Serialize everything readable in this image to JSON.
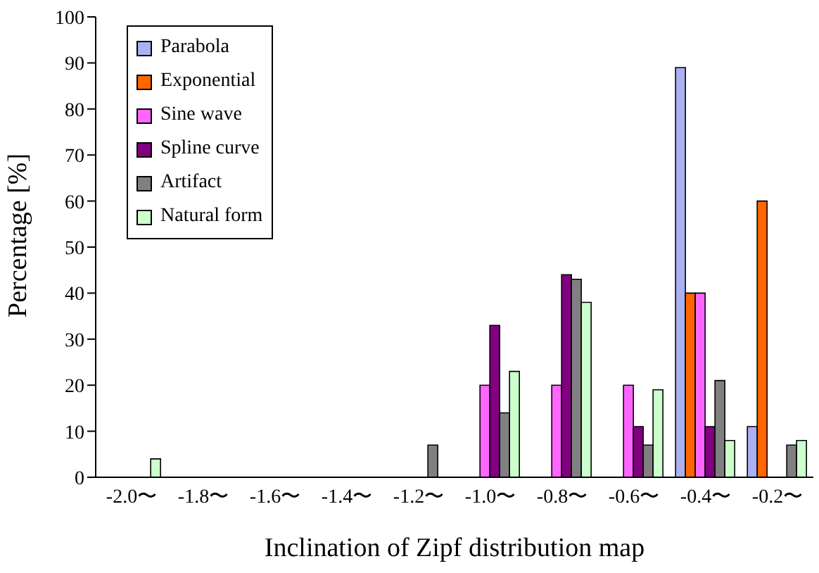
{
  "chart_data": {
    "type": "bar",
    "xlabel": "Inclination of Zipf distribution map",
    "ylabel": "Percentage [%]",
    "categories": [
      "-2.0〜",
      "-1.8〜",
      "-1.6〜",
      "-1.4〜",
      "-1.2〜",
      "-1.0〜",
      "-0.8〜",
      "-0.6〜",
      "-0.4〜",
      "-0.2〜"
    ],
    "series": [
      {
        "name": "Parabola",
        "color": "#aab0f0",
        "values": [
          0,
          0,
          0,
          0,
          0,
          0,
          0,
          0,
          89,
          11
        ]
      },
      {
        "name": "Exponential",
        "color": "#ff6600",
        "values": [
          0,
          0,
          0,
          0,
          0,
          0,
          0,
          0,
          40,
          60
        ]
      },
      {
        "name": "Sine wave",
        "color": "#ff66ff",
        "values": [
          0,
          0,
          0,
          0,
          0,
          20,
          20,
          20,
          40,
          0
        ]
      },
      {
        "name": "Spline curve",
        "color": "#800080",
        "values": [
          0,
          0,
          0,
          0,
          0,
          33,
          44,
          11,
          11,
          0
        ]
      },
      {
        "name": "Artifact",
        "color": "#808080",
        "values": [
          0,
          0,
          0,
          0,
          7,
          14,
          43,
          7,
          21,
          7
        ]
      },
      {
        "name": "Natural form",
        "color": "#ccffcc",
        "values": [
          4,
          0,
          0,
          0,
          0,
          23,
          38,
          19,
          8,
          8
        ]
      }
    ],
    "ylim": [
      0,
      100
    ],
    "yticks": [
      0,
      10,
      20,
      30,
      40,
      50,
      60,
      70,
      80,
      90,
      100
    ],
    "grid": false,
    "legend": "top left"
  }
}
